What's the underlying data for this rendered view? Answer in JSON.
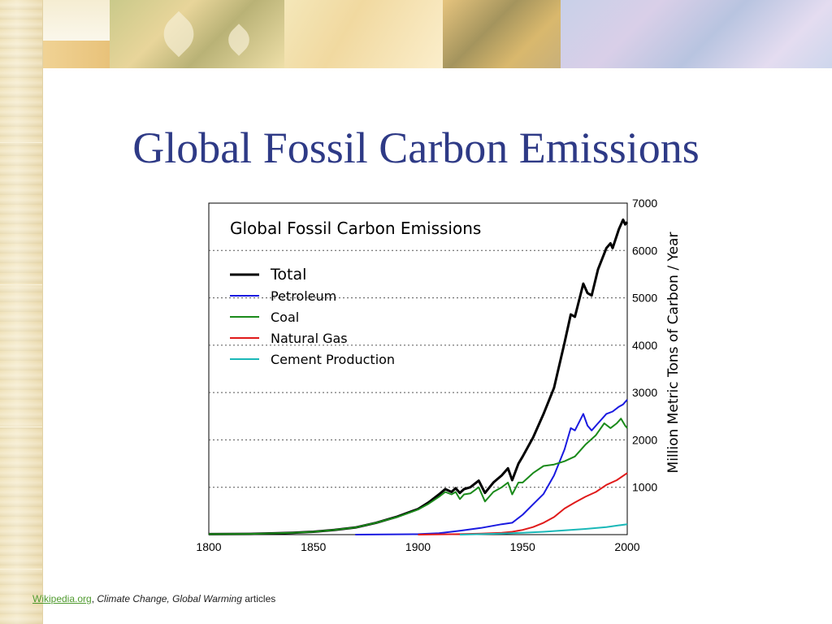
{
  "slide": {
    "title": "Global Fossil Carbon Emissions"
  },
  "footer": {
    "link": "Wikipedia.org",
    "sep": ", ",
    "italic": "Climate Change, Global Warming",
    "rest": " articles"
  },
  "chart_data": {
    "type": "line",
    "title": "Global Fossil Carbon Emissions",
    "xlabel": "",
    "ylabel": "Million Metric Tons of Carbon / Year",
    "xlim": [
      1800,
      2000
    ],
    "ylim": [
      0,
      7000
    ],
    "xticks": [
      1800,
      1850,
      1900,
      1950,
      2000
    ],
    "yticks": [
      1000,
      2000,
      3000,
      4000,
      5000,
      6000,
      7000
    ],
    "grid": "horizontal dotted",
    "legend_position": "top-left",
    "series": [
      {
        "name": "Total",
        "color": "#000000",
        "points": [
          [
            1800,
            10
          ],
          [
            1820,
            15
          ],
          [
            1840,
            40
          ],
          [
            1850,
            60
          ],
          [
            1860,
            100
          ],
          [
            1870,
            150
          ],
          [
            1880,
            250
          ],
          [
            1890,
            380
          ],
          [
            1900,
            540
          ],
          [
            1905,
            680
          ],
          [
            1910,
            850
          ],
          [
            1913,
            960
          ],
          [
            1916,
            900
          ],
          [
            1918,
            980
          ],
          [
            1920,
            880
          ],
          [
            1922,
            960
          ],
          [
            1925,
            1000
          ],
          [
            1929,
            1140
          ],
          [
            1932,
            880
          ],
          [
            1936,
            1100
          ],
          [
            1940,
            1250
          ],
          [
            1943,
            1400
          ],
          [
            1945,
            1150
          ],
          [
            1948,
            1500
          ],
          [
            1950,
            1650
          ],
          [
            1955,
            2050
          ],
          [
            1960,
            2550
          ],
          [
            1965,
            3100
          ],
          [
            1970,
            4050
          ],
          [
            1973,
            4650
          ],
          [
            1975,
            4600
          ],
          [
            1979,
            5300
          ],
          [
            1981,
            5100
          ],
          [
            1983,
            5050
          ],
          [
            1986,
            5600
          ],
          [
            1990,
            6050
          ],
          [
            1992,
            6150
          ],
          [
            1993,
            6050
          ],
          [
            1996,
            6450
          ],
          [
            1998,
            6650
          ],
          [
            1999,
            6550
          ],
          [
            2000,
            6600
          ]
        ]
      },
      {
        "name": "Petroleum",
        "color": "#1a1ae0",
        "points": [
          [
            1870,
            0
          ],
          [
            1900,
            10
          ],
          [
            1910,
            30
          ],
          [
            1920,
            80
          ],
          [
            1930,
            140
          ],
          [
            1940,
            220
          ],
          [
            1945,
            250
          ],
          [
            1950,
            420
          ],
          [
            1955,
            640
          ],
          [
            1960,
            860
          ],
          [
            1965,
            1250
          ],
          [
            1970,
            1800
          ],
          [
            1973,
            2250
          ],
          [
            1975,
            2200
          ],
          [
            1979,
            2550
          ],
          [
            1981,
            2300
          ],
          [
            1983,
            2200
          ],
          [
            1986,
            2350
          ],
          [
            1990,
            2550
          ],
          [
            1993,
            2600
          ],
          [
            1996,
            2700
          ],
          [
            1998,
            2750
          ],
          [
            2000,
            2850
          ]
        ]
      },
      {
        "name": "Coal",
        "color": "#1a8a1a",
        "points": [
          [
            1800,
            10
          ],
          [
            1820,
            15
          ],
          [
            1840,
            40
          ],
          [
            1850,
            60
          ],
          [
            1860,
            100
          ],
          [
            1870,
            150
          ],
          [
            1880,
            250
          ],
          [
            1890,
            370
          ],
          [
            1900,
            530
          ],
          [
            1905,
            650
          ],
          [
            1910,
            800
          ],
          [
            1913,
            900
          ],
          [
            1916,
            850
          ],
          [
            1918,
            900
          ],
          [
            1920,
            750
          ],
          [
            1922,
            850
          ],
          [
            1925,
            870
          ],
          [
            1929,
            1000
          ],
          [
            1932,
            700
          ],
          [
            1936,
            900
          ],
          [
            1940,
            1000
          ],
          [
            1943,
            1100
          ],
          [
            1945,
            850
          ],
          [
            1948,
            1100
          ],
          [
            1950,
            1100
          ],
          [
            1955,
            1300
          ],
          [
            1960,
            1450
          ],
          [
            1965,
            1480
          ],
          [
            1970,
            1550
          ],
          [
            1975,
            1650
          ],
          [
            1980,
            1900
          ],
          [
            1985,
            2100
          ],
          [
            1989,
            2350
          ],
          [
            1992,
            2250
          ],
          [
            1995,
            2350
          ],
          [
            1997,
            2450
          ],
          [
            1999,
            2300
          ],
          [
            2000,
            2250
          ]
        ]
      },
      {
        "name": "Natural Gas",
        "color": "#e01a1a",
        "points": [
          [
            1900,
            0
          ],
          [
            1920,
            10
          ],
          [
            1930,
            20
          ],
          [
            1940,
            40
          ],
          [
            1945,
            60
          ],
          [
            1950,
            100
          ],
          [
            1955,
            160
          ],
          [
            1960,
            250
          ],
          [
            1965,
            370
          ],
          [
            1970,
            550
          ],
          [
            1975,
            680
          ],
          [
            1980,
            800
          ],
          [
            1985,
            900
          ],
          [
            1990,
            1050
          ],
          [
            1995,
            1150
          ],
          [
            2000,
            1300
          ]
        ]
      },
      {
        "name": "Cement Production",
        "color": "#1ab8b8",
        "points": [
          [
            1920,
            0
          ],
          [
            1930,
            10
          ],
          [
            1940,
            20
          ],
          [
            1950,
            40
          ],
          [
            1960,
            60
          ],
          [
            1970,
            90
          ],
          [
            1980,
            120
          ],
          [
            1990,
            160
          ],
          [
            2000,
            220
          ]
        ]
      }
    ]
  }
}
